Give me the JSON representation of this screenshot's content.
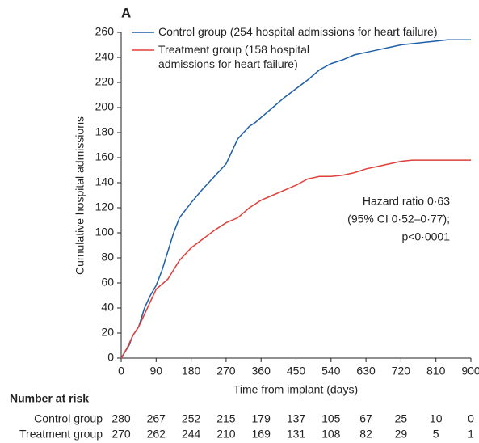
{
  "chart_data": {
    "type": "line",
    "panel_label": "A",
    "x_label": "Time from implant (days)",
    "y_label": "Cumulative hospital admissions",
    "xlim": [
      0,
      900
    ],
    "xticks": [
      0,
      90,
      180,
      270,
      360,
      450,
      540,
      630,
      720,
      810,
      900
    ],
    "ylim": [
      0,
      260
    ],
    "yticks": [
      0,
      20,
      40,
      60,
      80,
      100,
      120,
      140,
      160,
      180,
      200,
      220,
      240,
      260
    ],
    "grid": false,
    "legend": "upper left",
    "series": [
      {
        "name": "Control group (254 hospital admissions for heart failure)",
        "color": "#1f5fa8",
        "x": [
          0,
          10,
          20,
          30,
          45,
          60,
          75,
          90,
          105,
          120,
          135,
          150,
          165,
          180,
          210,
          240,
          270,
          285,
          300,
          330,
          345,
          360,
          390,
          420,
          450,
          480,
          510,
          540,
          570,
          600,
          630,
          660,
          690,
          720,
          780,
          810,
          840,
          900
        ],
        "values": [
          0,
          5,
          10,
          18,
          25,
          40,
          50,
          58,
          70,
          85,
          100,
          112,
          118,
          124,
          135,
          145,
          155,
          165,
          175,
          185,
          188,
          192,
          200,
          208,
          215,
          222,
          230,
          235,
          238,
          242,
          244,
          246,
          248,
          250,
          252,
          253,
          254,
          254
        ]
      },
      {
        "name": "Treatment group (158 hospital admissions for heart failure)",
        "color": "#e0403a",
        "x": [
          0,
          15,
          30,
          45,
          60,
          75,
          90,
          120,
          150,
          180,
          210,
          240,
          270,
          300,
          330,
          360,
          390,
          420,
          450,
          480,
          510,
          540,
          570,
          600,
          630,
          660,
          690,
          720,
          750,
          900
        ],
        "values": [
          0,
          8,
          18,
          25,
          35,
          45,
          55,
          63,
          78,
          88,
          95,
          102,
          108,
          112,
          120,
          126,
          130,
          134,
          138,
          143,
          145,
          145,
          146,
          148,
          151,
          153,
          155,
          157,
          158,
          158
        ]
      }
    ],
    "annotation": [
      "Hazard ratio 0·63",
      "(95% CI 0·52–0·77);",
      "p<0·0001"
    ]
  },
  "risk_table": {
    "title": "Number at risk",
    "rows": [
      {
        "label": "Control group",
        "values": [
          280,
          267,
          252,
          215,
          179,
          137,
          105,
          67,
          25,
          10,
          0
        ]
      },
      {
        "label": "Treatment group",
        "values": [
          270,
          262,
          244,
          210,
          169,
          131,
          108,
          82,
          29,
          5,
          1
        ]
      }
    ]
  }
}
